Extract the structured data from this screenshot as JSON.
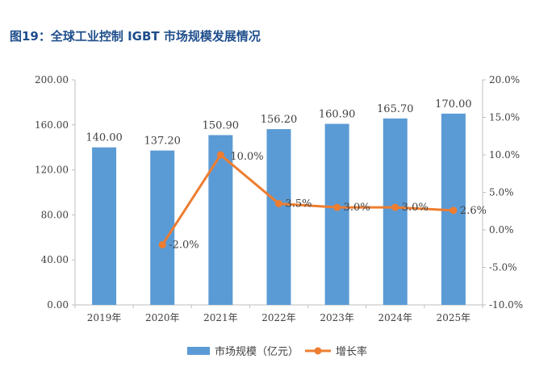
{
  "figure": {
    "title": "图19：全球工业控制 IGBT 市场规模发展情况"
  },
  "chart_data": {
    "type": "bar",
    "categories": [
      "2019年",
      "2020年",
      "2021年",
      "2022年",
      "2023年",
      "2024年",
      "2025年"
    ],
    "series": [
      {
        "name": "市场规模（亿元）",
        "type": "bar",
        "axis": "left",
        "color": "#5b9bd5",
        "values": [
          140.0,
          137.2,
          150.9,
          156.2,
          160.9,
          165.7,
          170.0
        ],
        "labels": [
          "140.00",
          "137.20",
          "150.90",
          "156.20",
          "160.90",
          "165.70",
          "170.00"
        ]
      },
      {
        "name": "增长率",
        "type": "line",
        "axis": "right",
        "color": "#ed7d31",
        "values": [
          null,
          -2.0,
          10.0,
          3.5,
          3.0,
          3.0,
          2.6
        ],
        "labels": [
          "",
          "-2.0%",
          "10.0%",
          "3.5%",
          "3.0%",
          "3.0%",
          "2.6%"
        ]
      }
    ],
    "y_left": {
      "min": 0,
      "max": 200,
      "ticks": [
        "0.00",
        "40.00",
        "80.00",
        "120.00",
        "160.00",
        "200.00"
      ]
    },
    "y_right": {
      "min": -10,
      "max": 20,
      "ticks": [
        "-10.0%",
        "-5.0%",
        "0.0%",
        "5.0%",
        "10.0%",
        "15.0%",
        "20.0%"
      ]
    },
    "legend": {
      "position": "bottom"
    },
    "grid": false
  }
}
